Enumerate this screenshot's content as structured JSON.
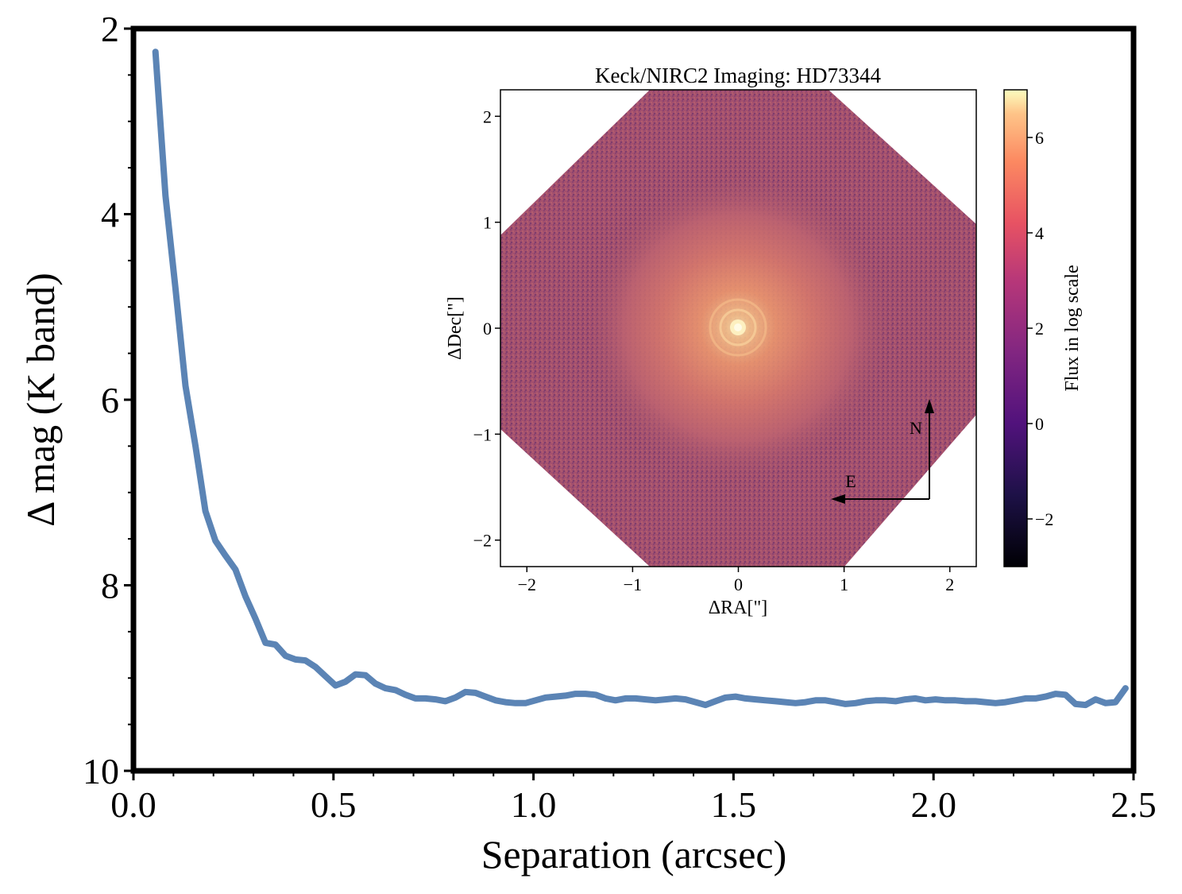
{
  "chart_data": [
    {
      "type": "line",
      "title": "",
      "xlabel": "Separation (arcsec)",
      "ylabel": "Δ mag (K band)",
      "xlim": [
        0.0,
        2.5
      ],
      "ylim": [
        10,
        2
      ],
      "y_inverted": true,
      "grid": false,
      "xticks": [
        "0.0",
        "0.5",
        "1.0",
        "1.5",
        "2.0",
        "2.5"
      ],
      "yticks": [
        "2",
        "4",
        "6",
        "8",
        "10"
      ],
      "line_color": "#5b84b5",
      "series": [
        {
          "x": [
            0.055,
            0.08,
            0.105,
            0.13,
            0.155,
            0.18,
            0.205,
            0.23,
            0.255,
            0.28,
            0.305,
            0.33,
            0.355,
            0.38,
            0.405,
            0.43,
            0.455,
            0.48,
            0.505,
            0.53,
            0.555,
            0.58,
            0.605,
            0.63,
            0.655,
            0.68,
            0.705,
            0.73,
            0.755,
            0.78,
            0.805,
            0.83,
            0.855,
            0.88,
            0.905,
            0.93,
            0.955,
            0.98,
            1.005,
            1.03,
            1.055,
            1.08,
            1.105,
            1.13,
            1.155,
            1.18,
            1.205,
            1.23,
            1.255,
            1.28,
            1.305,
            1.33,
            1.355,
            1.38,
            1.405,
            1.43,
            1.455,
            1.48,
            1.505,
            1.53,
            1.555,
            1.58,
            1.605,
            1.63,
            1.655,
            1.68,
            1.705,
            1.73,
            1.755,
            1.78,
            1.805,
            1.83,
            1.855,
            1.88,
            1.905,
            1.93,
            1.955,
            1.98,
            2.005,
            2.03,
            2.055,
            2.08,
            2.105,
            2.13,
            2.155,
            2.18,
            2.205,
            2.23,
            2.255,
            2.28,
            2.305,
            2.33,
            2.355,
            2.38,
            2.405,
            2.43,
            2.455,
            2.48
          ],
          "y": [
            2.25,
            3.8,
            4.8,
            5.85,
            6.5,
            7.2,
            7.52,
            7.68,
            7.83,
            8.12,
            8.36,
            8.62,
            8.64,
            8.76,
            8.8,
            8.81,
            8.88,
            8.98,
            9.08,
            9.04,
            8.96,
            8.97,
            9.06,
            9.11,
            9.13,
            9.18,
            9.22,
            9.22,
            9.23,
            9.25,
            9.21,
            9.15,
            9.16,
            9.2,
            9.24,
            9.26,
            9.27,
            9.27,
            9.24,
            9.21,
            9.2,
            9.19,
            9.17,
            9.17,
            9.18,
            9.22,
            9.24,
            9.22,
            9.22,
            9.23,
            9.24,
            9.23,
            9.22,
            9.23,
            9.26,
            9.29,
            9.25,
            9.21,
            9.2,
            9.22,
            9.23,
            9.24,
            9.25,
            9.26,
            9.27,
            9.26,
            9.24,
            9.24,
            9.26,
            9.28,
            9.27,
            9.25,
            9.24,
            9.24,
            9.25,
            9.23,
            9.22,
            9.24,
            9.23,
            9.24,
            9.24,
            9.25,
            9.25,
            9.26,
            9.27,
            9.26,
            9.24,
            9.22,
            9.22,
            9.2,
            9.17,
            9.18,
            9.28,
            9.29,
            9.23,
            9.27,
            9.26,
            9.11
          ]
        }
      ]
    },
    {
      "type": "heatmap",
      "title": "Keck/NIRC2 Imaging: HD73344",
      "xlabel": "ΔRA[\"]",
      "ylabel": "ΔDec[\"]",
      "xlim": [
        -2.25,
        2.25
      ],
      "ylim": [
        -2.25,
        2.25
      ],
      "xticks": [
        "−2",
        "−1",
        "0",
        "1",
        "2"
      ],
      "yticks": [
        "−2",
        "−1",
        "0",
        "1",
        "2"
      ],
      "colorbar": {
        "label": "Flux in log scale",
        "range": [
          -3,
          7
        ],
        "ticks": [
          "−2",
          "0",
          "2",
          "4",
          "6"
        ],
        "colormap": "magma"
      },
      "compass": {
        "north_label": "N",
        "east_label": "E"
      }
    }
  ]
}
